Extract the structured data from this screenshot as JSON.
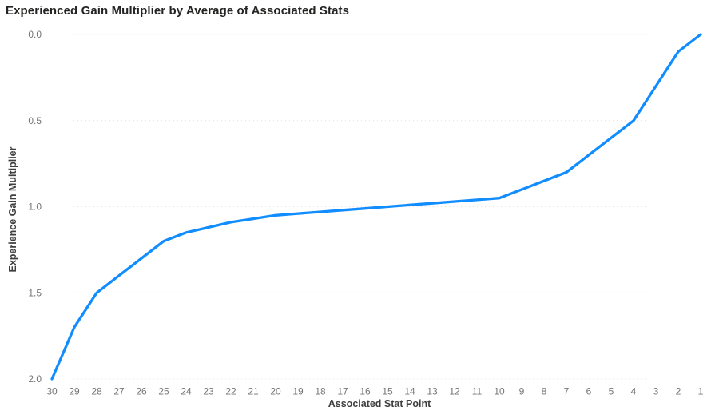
{
  "chart_data": {
    "type": "line",
    "title": "Experienced Gain Multiplier by Average of Associated Stats",
    "xlabel": "Associated Stat Point",
    "ylabel": "Experience Gain Multiplier",
    "x_categories": [
      "30",
      "29",
      "28",
      "27",
      "26",
      "25",
      "24",
      "23",
      "22",
      "21",
      "20",
      "19",
      "18",
      "17",
      "16",
      "15",
      "14",
      "13",
      "12",
      "11",
      "10",
      "9",
      "8",
      "7",
      "6",
      "5",
      "4",
      "3",
      "2",
      "1"
    ],
    "series": [
      {
        "name": "Experience Gain Multiplier",
        "values": [
          2.0,
          1.7,
          1.5,
          1.4,
          1.3,
          1.2,
          1.15,
          1.12,
          1.09,
          1.07,
          1.05,
          1.04,
          1.03,
          1.02,
          1.01,
          1.0,
          0.99,
          0.98,
          0.97,
          0.96,
          0.95,
          0.9,
          0.85,
          0.8,
          0.7,
          0.6,
          0.5,
          0.3,
          0.1,
          0.0
        ]
      }
    ],
    "y_ticks": [
      "0.0",
      "0.5",
      "1.0",
      "1.5",
      "2.0"
    ],
    "ylim": [
      0.0,
      2.0
    ],
    "y_axis_inverted": true,
    "x_axis_descending": true,
    "grid": "horizontal-dotted",
    "legend": "none",
    "line_color": "#118DFF",
    "background_color": "#ffffff"
  }
}
